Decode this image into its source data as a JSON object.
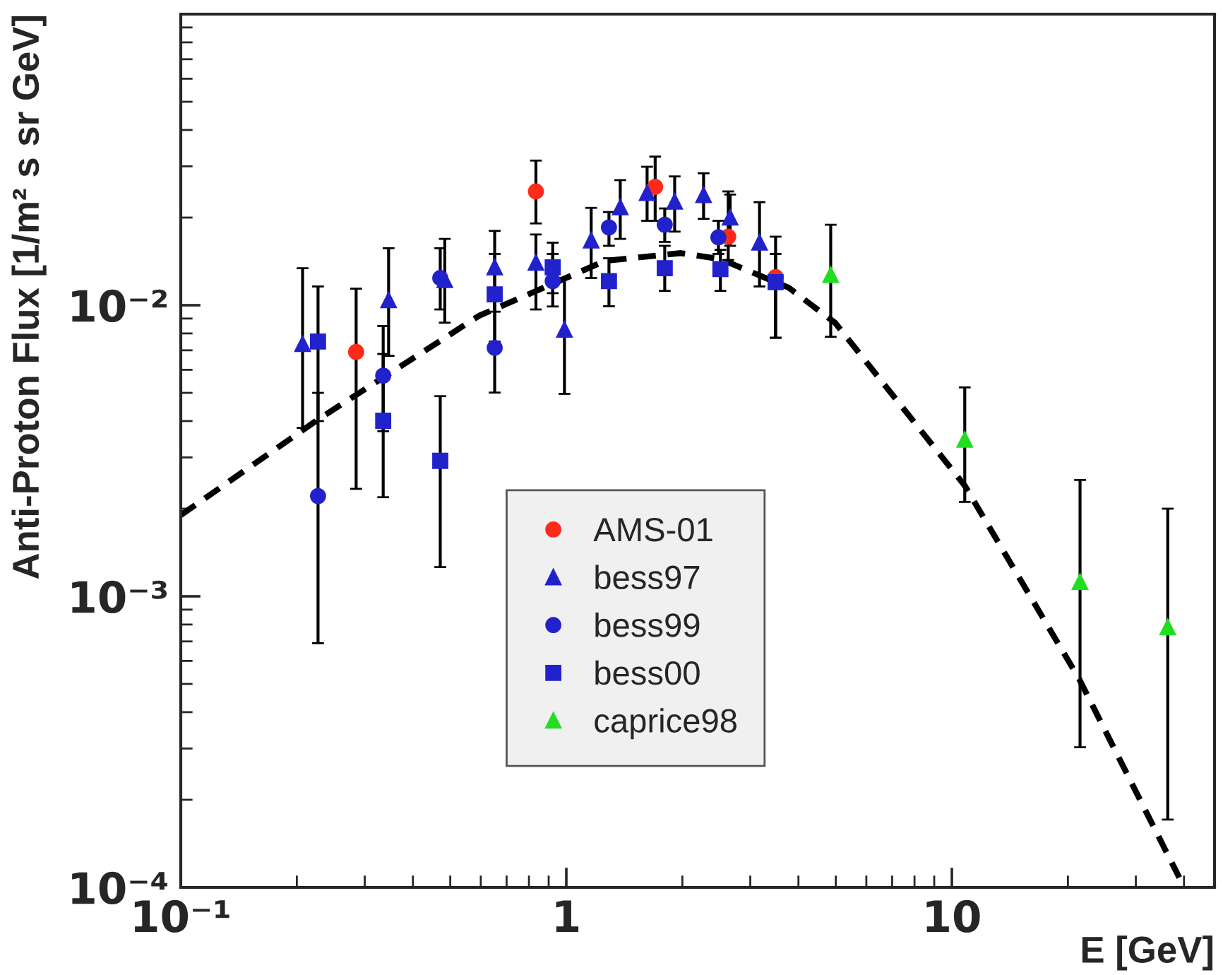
{
  "chart_data": {
    "type": "scatter",
    "xlabel": "E [GeV]",
    "ylabel": "Anti-Proton Flux [1/m² s sr GeV]",
    "log": "xy",
    "xlim": [
      0.1,
      48
    ],
    "ylim": [
      0.0001,
      0.1
    ],
    "xticks": [
      {
        "value": 0.1,
        "label": "10⁻¹"
      },
      1,
      10
    ],
    "yticks": [
      {
        "value": 0.0001,
        "label": "10⁻⁴"
      },
      {
        "value": 0.001,
        "label": "10⁻³"
      },
      {
        "value": 0.01,
        "label": "10⁻²"
      }
    ],
    "grid": false,
    "legend": "bottom",
    "series": [
      {
        "name": "AMS-01",
        "color": "#ff2a1a",
        "marker": "circle",
        "x": [
          0.285,
          0.834,
          1.7,
          2.63,
          3.49
        ],
        "values": [
          0.00691,
          0.0246,
          0.0255,
          0.0172,
          0.0125
        ],
        "errors": [
          [
            0.00234,
            0.0114
          ],
          [
            0.0191,
            0.0314
          ],
          [
            0.0195,
            0.0324
          ],
          [
            0.0143,
            0.0246
          ],
          [
            0.00773,
            0.0172
          ]
        ]
      },
      {
        "name": "bess97",
        "color": "#2222cc",
        "marker": "triangle",
        "x": [
          0.207,
          0.346,
          0.484,
          0.652,
          0.834,
          0.989,
          1.16,
          1.38,
          1.62,
          1.91,
          2.27,
          2.66,
          3.17
        ],
        "values": [
          0.00736,
          0.0104,
          0.0122,
          0.0135,
          0.014,
          0.00824,
          0.0167,
          0.0217,
          0.0243,
          0.0227,
          0.0239,
          0.02,
          0.0164
        ],
        "errors": [
          [
            0.00379,
            0.0134
          ],
          [
            0.0067,
            0.0157
          ],
          [
            0.00871,
            0.0169
          ],
          [
            0.0095,
            0.018
          ],
          [
            0.00967,
            0.0175
          ],
          [
            0.00496,
            0.0124
          ],
          [
            0.0124,
            0.0216
          ],
          [
            0.0169,
            0.0269
          ],
          [
            0.0195,
            0.0299
          ],
          [
            0.0179,
            0.0277
          ],
          [
            0.0198,
            0.0284
          ],
          [
            0.016,
            0.024
          ],
          [
            0.0116,
            0.0226
          ]
        ]
      },
      {
        "name": "bess99",
        "color": "#2222cc",
        "marker": "circle",
        "x": [
          0.227,
          0.335,
          0.471,
          0.652,
          0.922,
          1.29,
          1.8,
          2.48
        ],
        "values": [
          0.00221,
          0.00573,
          0.0124,
          0.00714,
          0.0121,
          0.0185,
          0.0189,
          0.0171
        ],
        "errors": [
          [
            0.00069,
            0.005
          ],
          [
            0.00369,
            0.00848
          ],
          [
            0.00967,
            0.0157
          ],
          [
            0.00501,
            0.0105
          ],
          [
            0.0099,
            0.015
          ],
          [
            0.016,
            0.0209
          ],
          [
            0.0165,
            0.0215
          ],
          [
            0.015,
            0.0195
          ]
        ]
      },
      {
        "name": "bess00",
        "color": "#2222cc",
        "marker": "square",
        "x": [
          0.227,
          0.335,
          0.471,
          0.652,
          0.922,
          1.29,
          1.8,
          2.51,
          3.49
        ],
        "values": [
          0.0075,
          0.00401,
          0.00292,
          0.0109,
          0.0135,
          0.0121,
          0.0134,
          0.0133,
          0.012
        ],
        "errors": [
          [
            0.004,
            0.0116
          ],
          [
            0.00219,
            0.0068
          ],
          [
            0.00126,
            0.00487
          ],
          [
            0.0075,
            0.015
          ],
          [
            0.011,
            0.0164
          ],
          [
            0.00992,
            0.0145
          ],
          [
            0.0112,
            0.016
          ],
          [
            0.0112,
            0.0155
          ],
          [
            0.00773,
            0.015
          ]
        ]
      },
      {
        "name": "caprice98",
        "color": "#22dd22",
        "marker": "triangle",
        "x": [
          4.85,
          10.8,
          21.5,
          36.3
        ],
        "values": [
          0.0127,
          0.00345,
          0.00112,
          0.000783
        ],
        "errors": [
          [
            0.00779,
            0.0189
          ],
          [
            0.00211,
            0.00522
          ],
          [
            0.000303,
            0.00251
          ],
          [
            0.000171,
            0.002
          ]
        ]
      },
      {
        "type": "line",
        "color": "#000000",
        "line_style": "dashed",
        "marker": "none",
        "x": [
          0.1,
          0.227,
          0.594,
          0.652,
          1.26,
          1.98,
          2.51,
          3.49,
          3.77,
          4.98,
          10.8,
          21.4,
          38.9
        ],
        "values": [
          0.0019,
          0.00405,
          0.0092,
          0.0097,
          0.0142,
          0.0151,
          0.0144,
          0.012,
          0.0115,
          0.0087,
          0.0024,
          0.000519,
          0.000108
        ]
      }
    ]
  }
}
